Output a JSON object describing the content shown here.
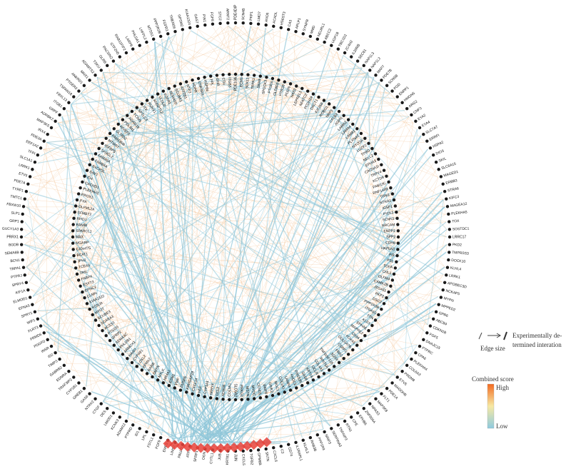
{
  "network": {
    "outer_ring_labels": [
      "PDE4DIP",
      "SCN4B",
      "PKP1",
      "LMO7",
      "ANO5",
      "ACADL",
      "HS6ST3",
      "CA3",
      "APLP1",
      "SYNPR",
      "MMD",
      "NEURL1",
      "ABCC2",
      "UGP1B",
      "TBC1D2",
      "ZC4H2",
      "IL20RB",
      "SEC61",
      "NAP1L3",
      "NAP1L2",
      "MAP7",
      "PDE7B",
      "SCN5B",
      "PGD",
      "ENPP1",
      "HMGN5",
      "ARG2",
      "CNF3",
      "EYA2",
      "EYA4",
      "SLC7A7",
      "ERRFI",
      "HSPA2",
      "DIO3",
      "SKIL",
      "SLC6A15",
      "MAGED1",
      "ERBB3",
      "STRA6",
      "KIFC3",
      "MAGEA12",
      "PLEKHA5",
      "TOX",
      "SOSTDC1",
      "LRRC17",
      "PKD2",
      "TMPRSS3",
      "DOCK10",
      "KLHL4",
      "LRRK1",
      "APOBEC3D",
      "NCKAP5",
      "MYPN",
      "MPPED2",
      "GPR6",
      "ABCB4",
      "CDKN1B",
      "FGF5",
      "DNAJC15",
      "PTPRC",
      "CPA6",
      "PLEKHA4",
      "COL6A3",
      "PRDM8",
      "ETV5",
      "MAGOHB",
      "PDE1A",
      "FLT1",
      "MAP3K8",
      "NPAS3",
      "ZNF804A",
      "EPHB6",
      "CPE",
      "RTN1",
      "TNFAIP3",
      "SERPINA3",
      "NRIP3",
      "PPP1R9",
      "RAB3B",
      "KLHL3",
      "IL1RAPL1",
      "CD74",
      "C3",
      "CXCL6",
      "SNTN",
      "GPM6B",
      "TGFB2",
      "CXCL5",
      "JUN",
      "KRT81",
      "JUB",
      "CYTL1",
      "OGN",
      "SFRP1",
      "ATP6",
      "PALLD",
      "LIMS2",
      "EMP3",
      "FGF9",
      "FSTL1",
      "LPL",
      "ID1",
      "PTPRD",
      "ADAM12",
      "KCNK3",
      "LMOD1",
      "DES",
      "CTGF",
      "NTRK2",
      "GAS6",
      "GREB1",
      "CYP1B1",
      "TRAF3IP2",
      "EDNRA",
      "GABRB2",
      "TIMP3",
      "ID2",
      "INSR",
      "PDGFD",
      "FRMD6",
      "FLRT3",
      "WIF1",
      "SPRY1",
      "EFNA5",
      "ELMOD1",
      "KIF1A",
      "SPRY4",
      "PTPRJ",
      "TRPA1",
      "BCN1",
      "SEMA6B",
      "BGDB",
      "PRRX1",
      "GUCY1A3",
      "GRP1",
      "SLP1",
      "FBXW10",
      "TMTC1",
      "TYRP1",
      "PDE7A",
      "ETV5",
      "LRRK1",
      "SLC1A1",
      "TFPI",
      "EEF1A2",
      "PDE3A",
      "IRX4",
      "MAP3K5",
      "ADRBK2",
      "GRPF",
      "ITGB1",
      "FBXL13",
      "TSPAN18",
      "PTGER3",
      "ANKRD1",
      "MNX1",
      "ADAMTS2",
      "TSKU",
      "GLRB",
      "PACSIN2",
      "GTF2H5",
      "RAB11FIP2",
      "LARP6",
      "PHLDA1",
      "LHFPL2",
      "MTSS1",
      "PPP2R2B",
      "FGFR3",
      "TMEM26",
      "GPSM2",
      "KIAA1324",
      "GAS7",
      "PIN1",
      "FGF8",
      "STC2",
      "ARNT2"
    ],
    "inner_ring_labels": [
      "PDE10A",
      "ECM1",
      "SOX11",
      "TRPA1",
      "SNX9",
      "SPOCK3",
      "PTGES",
      "GLT8D2",
      "HTR2B",
      "PODN",
      "HAS2",
      "LEPREL1",
      "NFATC2",
      "PCDH19",
      "DACT1",
      "KIF26B",
      "ROBO1",
      "NRP1",
      "CALB2",
      "ASPN",
      "LAMA2",
      "LAMA4",
      "LAMB1",
      "PLXNA2",
      "MYO3A",
      "LUZP2",
      "TPBG",
      "NELL2",
      "EPHA3",
      "CACNA1I",
      "TRPV4",
      "KCTD8",
      "FAM13C",
      "RNF144B",
      "TGM1",
      "NTRA1",
      "IGSF1",
      "PICK1",
      "SCNN1",
      "NRCAM",
      "ENPP2",
      "SPP2",
      "CDH8",
      "HAPLN1",
      "PI3",
      "PSL",
      "TGFA",
      "CHL1",
      "OLFM4",
      "CAMK2B",
      "ITGA11",
      "PKP2",
      "DSC2",
      "PPP1R3B",
      "ITGA10",
      "TTN",
      "KLF3",
      "EPHA5",
      "MAPRE2",
      "CD34",
      "FOXA1",
      "GOLGA7B",
      "CSRP2",
      "FBN2",
      "SOX4",
      "TNFRSF11B",
      "WNT5A",
      "COL4A1",
      "OCLN",
      "KRT19",
      "GAS6",
      "PRSS35",
      "FHDC1",
      "LAMA4",
      "COL1A1",
      "MUC1",
      "GRIK2",
      "BMP4",
      "CCND1",
      "MYOC",
      "MSTN",
      "PRKG2",
      "SLC6A2",
      "COL3A1",
      "ADH1B",
      "CCL2",
      "SPRY4",
      "CYP1A1",
      "HLF",
      "CXCL14",
      "ARHGAP29",
      "DUSP6",
      "VWF",
      "ESM1",
      "NR4A1",
      "MYLK",
      "SMTN",
      "RARB",
      "EPHX2",
      "LOXL2",
      "CYP4B1",
      "HAAO",
      "ARMCX1",
      "PHLDB1",
      "SEMA3C",
      "SFRP2",
      "PTGDS",
      "ACSS3",
      "SCARA3",
      "SCUBE3",
      "MYOT",
      "KCNJ8",
      "KIAA1522",
      "CLMN",
      "EPHC2",
      "ESYT3",
      "FABP4",
      "TRIL",
      "TCEA3",
      "JPH2",
      "BCAT1",
      "C10orf75",
      "MGARP",
      "MAX",
      "SPARCL1",
      "BAMBI",
      "RHOJ",
      "SFMBT2",
      "OLFML2A",
      "PXK",
      "PROX1",
      "PLEKHH2",
      "CACHD1",
      "ID4",
      "SAV1",
      "SYCP3L",
      "FAM84A",
      "FAM49A",
      "SH3GL2",
      "IGFBP5",
      "MTMR7",
      "FAM135B",
      "GLT8D2",
      "HIVEP2",
      "PDLIM1",
      "ADAM19",
      "TCIM5",
      "SPTLC3",
      "ITK",
      "RUNX1",
      "ANGPTL2",
      "VLDLR",
      "FGFR1",
      "SEMA6D",
      "SCUBE1",
      "ATP2B1",
      "NTF3",
      "HDPR",
      "CNKSR3",
      "HSPB6",
      "PPL",
      "GHR",
      "CTH",
      "ITGB3"
    ]
  },
  "legend": {
    "edge_size_label": "Edge size",
    "experimental_label_line1": "Experimentally de-",
    "experimental_label_line2": "termined interation",
    "combined_score_label": "Combined score",
    "high_label": "High",
    "low_label": "Low"
  },
  "colors": {
    "edge_blue": "#8ec6d8",
    "edge_orange": "#f4c79a",
    "node_fill": "#1a1a1a",
    "hub_red": "#e8423a",
    "gradient_high": "#f36b22",
    "gradient_mid": "#f7e9a3",
    "gradient_low": "#8ecbe0"
  }
}
